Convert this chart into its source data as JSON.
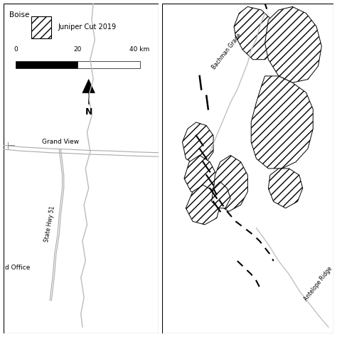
{
  "fig_width": 4.74,
  "fig_height": 4.74,
  "dpi": 100,
  "bg_color": "#ffffff",
  "border_color": "#000000",
  "title_text": "Boise",
  "legend_label": "Juniper Cut 2019",
  "scale_bar_ticks": [
    "0",
    "20",
    "40 km"
  ],
  "north_arrow_text": "N",
  "left_labels": [
    "Grand View",
    "State Hwy 51",
    "d Office"
  ],
  "right_labels": [
    "Bachman Grade",
    "Antelope Ridge"
  ]
}
